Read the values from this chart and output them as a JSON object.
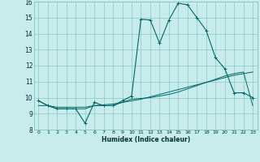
{
  "xlabel": "Humidex (Indice chaleur)",
  "bg_color": "#c8ecec",
  "grid_color": "#88c8c8",
  "line_color": "#006868",
  "xlim": [
    -0.5,
    23.5
  ],
  "ylim": [
    8,
    16
  ],
  "xticks": [
    0,
    1,
    2,
    3,
    4,
    5,
    6,
    7,
    8,
    9,
    10,
    11,
    12,
    13,
    14,
    15,
    16,
    17,
    18,
    19,
    20,
    21,
    22,
    23
  ],
  "yticks": [
    8,
    9,
    10,
    11,
    12,
    13,
    14,
    15,
    16
  ],
  "line1_x": [
    0,
    1,
    2,
    3,
    4,
    5,
    6,
    7,
    8,
    9,
    10,
    11,
    12,
    13,
    14,
    15,
    16,
    17,
    18,
    19,
    20,
    21,
    22,
    23
  ],
  "line1_y": [
    9.8,
    9.5,
    9.3,
    9.3,
    9.3,
    8.4,
    9.7,
    9.5,
    9.5,
    9.8,
    10.1,
    14.9,
    14.85,
    13.4,
    14.85,
    15.9,
    15.8,
    15.0,
    14.2,
    12.5,
    11.8,
    10.3,
    10.3,
    10.0
  ],
  "line2_x": [
    0,
    1,
    2,
    3,
    4,
    5,
    6,
    7,
    8,
    9,
    10,
    11,
    12,
    13,
    14,
    15,
    16,
    17,
    18,
    19,
    20,
    21,
    22,
    23
  ],
  "line2_y": [
    9.5,
    9.5,
    9.4,
    9.4,
    9.4,
    9.4,
    9.5,
    9.55,
    9.6,
    9.7,
    9.8,
    9.9,
    10.05,
    10.2,
    10.35,
    10.5,
    10.65,
    10.8,
    10.95,
    11.1,
    11.25,
    11.4,
    11.5,
    11.6
  ],
  "line3_x": [
    0,
    1,
    2,
    3,
    4,
    5,
    6,
    7,
    8,
    9,
    10,
    11,
    12,
    13,
    14,
    15,
    16,
    17,
    18,
    19,
    20,
    21,
    22,
    23
  ],
  "line3_y": [
    9.8,
    9.5,
    9.3,
    9.3,
    9.3,
    9.3,
    9.5,
    9.5,
    9.5,
    9.7,
    9.9,
    9.95,
    10.0,
    10.1,
    10.2,
    10.35,
    10.55,
    10.75,
    10.95,
    11.15,
    11.35,
    11.5,
    11.6,
    9.5
  ]
}
